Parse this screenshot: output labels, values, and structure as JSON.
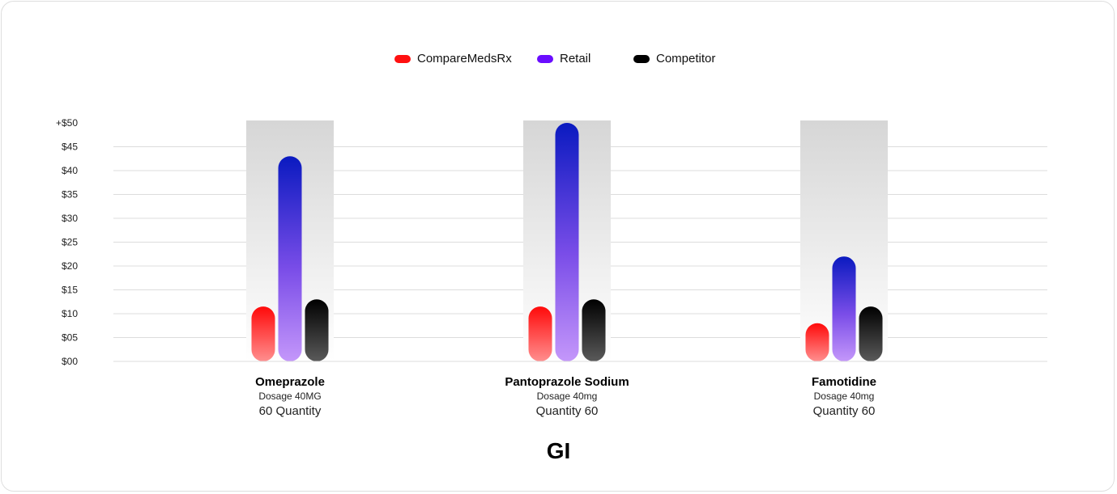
{
  "chart_data": {
    "type": "bar",
    "title": "GI",
    "y_tick_labels": [
      "$00",
      "$05",
      "$10",
      "$15",
      "$20",
      "$25",
      "$30",
      "$35",
      "$40",
      "$45",
      "+$50"
    ],
    "ylim": [
      0,
      50
    ],
    "grid": true,
    "legend_position": "top-center",
    "categories": [
      {
        "name": "Omeprazole",
        "dosage": "Dosage 40MG",
        "quantity": "60 Quantity"
      },
      {
        "name": "Pantoprazole Sodium",
        "dosage": "Dosage 40mg",
        "quantity": "Quantity 60"
      },
      {
        "name": "Famotidine",
        "dosage": "Dosage 40mg",
        "quantity": "Quantity 60"
      }
    ],
    "series": [
      {
        "name": "CompareMedsRx",
        "color": "#ff1010",
        "values": [
          11.5,
          11.5,
          8
        ]
      },
      {
        "name": "Retail",
        "color": "#6a0dff",
        "values": [
          43,
          51,
          22
        ]
      },
      {
        "name": "Competitor",
        "color": "#000000",
        "values": [
          13,
          13,
          11.5
        ]
      }
    ]
  }
}
